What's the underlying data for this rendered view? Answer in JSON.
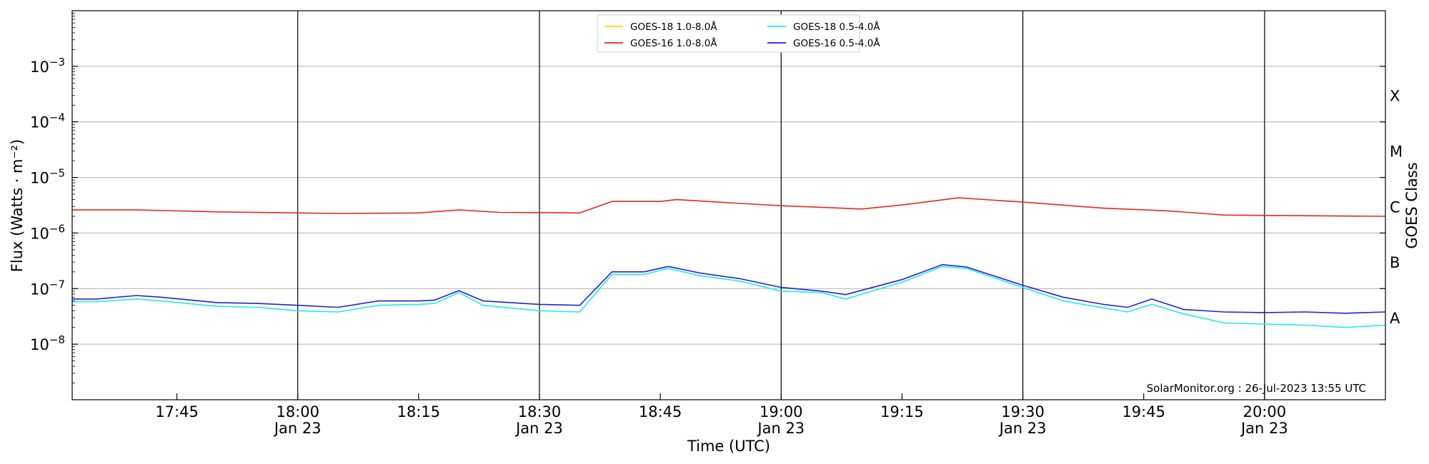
{
  "chart_data": {
    "type": "line",
    "title": "",
    "xlabel": "Time (UTC)",
    "ylabel": "Flux (Watts · m⁻²)",
    "ylabel_right": "GOES Class",
    "y_scale": "log",
    "ylim": [
      1e-09,
      0.01
    ],
    "xlim": [
      "2023-01-23 17:32",
      "2023-01-23 20:15"
    ],
    "y_ticks": [
      {
        "value": 1e-08,
        "base": "10",
        "exp": "−8"
      },
      {
        "value": 1e-07,
        "base": "10",
        "exp": "−7"
      },
      {
        "value": 1e-06,
        "base": "10",
        "exp": "−6"
      },
      {
        "value": 1e-05,
        "base": "10",
        "exp": "−5"
      },
      {
        "value": 0.0001,
        "base": "10",
        "exp": "−4"
      },
      {
        "value": 0.001,
        "base": "10",
        "exp": "−3"
      }
    ],
    "x_ticks": [
      {
        "time": "2023-01-23 17:45",
        "label": "17:45",
        "sublabel": "",
        "major": false
      },
      {
        "time": "2023-01-23 18:00",
        "label": "18:00",
        "sublabel": "Jan 23",
        "major": true
      },
      {
        "time": "2023-01-23 18:15",
        "label": "18:15",
        "sublabel": "",
        "major": false
      },
      {
        "time": "2023-01-23 18:30",
        "label": "18:30",
        "sublabel": "Jan 23",
        "major": true
      },
      {
        "time": "2023-01-23 18:45",
        "label": "18:45",
        "sublabel": "",
        "major": false
      },
      {
        "time": "2023-01-23 19:00",
        "label": "19:00",
        "sublabel": "Jan 23",
        "major": true
      },
      {
        "time": "2023-01-23 19:15",
        "label": "19:15",
        "sublabel": "",
        "major": false
      },
      {
        "time": "2023-01-23 19:30",
        "label": "19:30",
        "sublabel": "Jan 23",
        "major": true
      },
      {
        "time": "2023-01-23 19:45",
        "label": "19:45",
        "sublabel": "",
        "major": false
      },
      {
        "time": "2023-01-23 20:00",
        "label": "20:00",
        "sublabel": "Jan 23",
        "major": true
      }
    ],
    "goes_classes": [
      {
        "label": "X",
        "value": 0.0003
      },
      {
        "label": "M",
        "value": 3e-05
      },
      {
        "label": "C",
        "value": 3e-06
      },
      {
        "label": "B",
        "value": 3e-07
      },
      {
        "label": "A",
        "value": 3e-08
      }
    ],
    "grid": "horizontal",
    "legend_position": "top-center",
    "annotation": "SolarMonitor.org : 26-Jul-2023 13:55 UTC",
    "series": [
      {
        "name": "GOES-18 1.0-8.0Å",
        "color": "#FFD700",
        "x": [
          "2023-01-23 17:32"
        ],
        "y": [
          2.4e-06
        ]
      },
      {
        "name": "GOES-16 1.0-8.0Å",
        "color": "#E8281C",
        "x": [
          "2023-01-23 17:32",
          "2023-01-23 17:40",
          "2023-01-23 17:50",
          "2023-01-23 18:00",
          "2023-01-23 18:05",
          "2023-01-23 18:15",
          "2023-01-23 18:20",
          "2023-01-23 18:25",
          "2023-01-23 18:35",
          "2023-01-23 18:39",
          "2023-01-23 18:45",
          "2023-01-23 18:47",
          "2023-01-23 18:55",
          "2023-01-23 19:00",
          "2023-01-23 19:05",
          "2023-01-23 19:10",
          "2023-01-23 19:15",
          "2023-01-23 19:22",
          "2023-01-23 19:30",
          "2023-01-23 19:40",
          "2023-01-23 19:48",
          "2023-01-23 19:55",
          "2023-01-23 20:05",
          "2023-01-23 20:15"
        ],
        "y": [
          2.6e-06,
          2.6e-06,
          2.4e-06,
          2.3e-06,
          2.25e-06,
          2.3e-06,
          2.6e-06,
          2.35e-06,
          2.3e-06,
          3.7e-06,
          3.7e-06,
          4e-06,
          3.4e-06,
          3.1e-06,
          2.9e-06,
          2.7e-06,
          3.2e-06,
          4.3e-06,
          3.6e-06,
          2.8e-06,
          2.5e-06,
          2.1e-06,
          2.05e-06,
          2e-06
        ]
      },
      {
        "name": "GOES-18 0.5-4.0Å",
        "color": "#22E8F0",
        "x": [
          "2023-01-23 17:32",
          "2023-01-23 17:35",
          "2023-01-23 17:40",
          "2023-01-23 17:43",
          "2023-01-23 17:50",
          "2023-01-23 17:55",
          "2023-01-23 18:00",
          "2023-01-23 18:05",
          "2023-01-23 18:10",
          "2023-01-23 18:15",
          "2023-01-23 18:17",
          "2023-01-23 18:20",
          "2023-01-23 18:23",
          "2023-01-23 18:30",
          "2023-01-23 18:35",
          "2023-01-23 18:39",
          "2023-01-23 18:43",
          "2023-01-23 18:46",
          "2023-01-23 18:50",
          "2023-01-23 18:55",
          "2023-01-23 19:00",
          "2023-01-23 19:05",
          "2023-01-23 19:08",
          "2023-01-23 19:15",
          "2023-01-23 19:20",
          "2023-01-23 19:23",
          "2023-01-23 19:30",
          "2023-01-23 19:35",
          "2023-01-23 19:40",
          "2023-01-23 19:43",
          "2023-01-23 19:46",
          "2023-01-23 19:50",
          "2023-01-23 19:55",
          "2023-01-23 20:00",
          "2023-01-23 20:05",
          "2023-01-23 20:10",
          "2023-01-23 20:15"
        ],
        "y": [
          5.8e-08,
          5.8e-08,
          6.5e-08,
          6e-08,
          4.8e-08,
          4.6e-08,
          4e-08,
          3.8e-08,
          5e-08,
          5.2e-08,
          5.4e-08,
          8.5e-08,
          5e-08,
          4e-08,
          3.8e-08,
          1.8e-07,
          1.8e-07,
          2.3e-07,
          1.7e-07,
          1.35e-07,
          9e-08,
          8.5e-08,
          6.5e-08,
          1.3e-07,
          2.5e-07,
          2.3e-07,
          1.05e-07,
          6e-08,
          4.5e-08,
          3.8e-08,
          5.2e-08,
          3.5e-08,
          2.4e-08,
          2.3e-08,
          2.2e-08,
          2e-08,
          2.2e-08
        ]
      },
      {
        "name": "GOES-16 0.5-4.0Å",
        "color": "#2222D8",
        "x": [
          "2023-01-23 17:32",
          "2023-01-23 17:35",
          "2023-01-23 17:40",
          "2023-01-23 17:43",
          "2023-01-23 17:50",
          "2023-01-23 17:55",
          "2023-01-23 18:00",
          "2023-01-23 18:05",
          "2023-01-23 18:10",
          "2023-01-23 18:15",
          "2023-01-23 18:17",
          "2023-01-23 18:20",
          "2023-01-23 18:23",
          "2023-01-23 18:30",
          "2023-01-23 18:35",
          "2023-01-23 18:39",
          "2023-01-23 18:43",
          "2023-01-23 18:46",
          "2023-01-23 18:50",
          "2023-01-23 18:55",
          "2023-01-23 19:00",
          "2023-01-23 19:05",
          "2023-01-23 19:08",
          "2023-01-23 19:15",
          "2023-01-23 19:20",
          "2023-01-23 19:23",
          "2023-01-23 19:30",
          "2023-01-23 19:35",
          "2023-01-23 19:40",
          "2023-01-23 19:43",
          "2023-01-23 19:46",
          "2023-01-23 19:50",
          "2023-01-23 19:55",
          "2023-01-23 20:00",
          "2023-01-23 20:05",
          "2023-01-23 20:10",
          "2023-01-23 20:15"
        ],
        "y": [
          6.5e-08,
          6.5e-08,
          7.5e-08,
          7e-08,
          5.6e-08,
          5.4e-08,
          5e-08,
          4.6e-08,
          6e-08,
          6e-08,
          6.2e-08,
          9.2e-08,
          6e-08,
          5.2e-08,
          5e-08,
          2e-07,
          2e-07,
          2.5e-07,
          1.9e-07,
          1.5e-07,
          1.05e-07,
          9e-08,
          7.8e-08,
          1.45e-07,
          2.7e-07,
          2.45e-07,
          1.15e-07,
          7e-08,
          5.2e-08,
          4.6e-08,
          6.5e-08,
          4.2e-08,
          3.8e-08,
          3.7e-08,
          3.8e-08,
          3.6e-08,
          3.8e-08
        ]
      }
    ]
  }
}
